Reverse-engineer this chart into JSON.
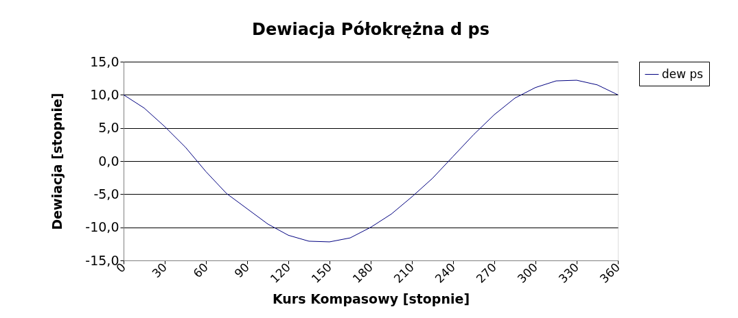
{
  "chart_data": {
    "type": "line",
    "title": "Dewiacja Półokrężna   d ps",
    "xlabel": "Kurs Kompasowy  [stopnie]",
    "ylabel": "Dewiacja [stopnie]",
    "x": [
      0,
      15,
      30,
      45,
      60,
      75,
      90,
      105,
      120,
      135,
      150,
      165,
      180,
      195,
      210,
      225,
      240,
      255,
      270,
      285,
      300,
      315,
      330,
      345,
      360
    ],
    "series": [
      {
        "name": "dew ps",
        "color": "#000080",
        "values": [
          10.0,
          8.0,
          5.2,
          2.1,
          -1.6,
          -4.9,
          -7.2,
          -9.5,
          -11.2,
          -12.1,
          -12.2,
          -11.6,
          -10.0,
          -8.0,
          -5.4,
          -2.6,
          0.7,
          4.0,
          7.0,
          9.5,
          11.1,
          12.1,
          12.2,
          11.5,
          10.0
        ]
      }
    ],
    "xlim": [
      0,
      360
    ],
    "xticks": [
      0,
      30,
      60,
      90,
      120,
      150,
      180,
      210,
      240,
      270,
      300,
      330,
      360
    ],
    "ylim": [
      -15,
      15
    ],
    "yticks": [
      {
        "value": -15,
        "label": "-15,0"
      },
      {
        "value": -10,
        "label": "-10,0"
      },
      {
        "value": -5,
        "label": "-5,0"
      },
      {
        "value": 0,
        "label": "0,0"
      },
      {
        "value": 5,
        "label": "5,0"
      },
      {
        "value": 10,
        "label": "10,0"
      },
      {
        "value": 15,
        "label": "15,0"
      }
    ],
    "grid": "y",
    "legend": "right",
    "marker": "none",
    "line_style": "solid"
  }
}
